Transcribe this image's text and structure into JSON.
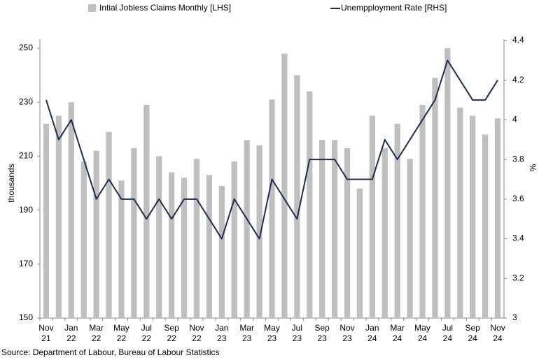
{
  "chart_data": {
    "type": "combo",
    "source": "Source: Department of Labour, Bureau of Labour Statistics",
    "y_label": "thousands",
    "y2_label": "%",
    "categories": [
      "Nov 21",
      null,
      "Jan 22",
      null,
      "Mar 22",
      null,
      "May 22",
      null,
      "Jul 22",
      null,
      "Sep 22",
      null,
      "Nov 22",
      null,
      "Jan 23",
      null,
      "Mar 23",
      null,
      "May 23",
      null,
      "Jul 23",
      null,
      "Sep 23",
      null,
      "Nov 23",
      null,
      "Jan 24",
      null,
      "Mar 24",
      null,
      "May 24",
      null,
      "Jul 24",
      null,
      "Sep 24",
      null,
      "Nov 24"
    ],
    "series": [
      {
        "name": "Intial Jobless Claims Monthly [LHS]",
        "type": "bar",
        "color": "#bfbfbf",
        "values": [
          222,
          225,
          230,
          208,
          212,
          219,
          201,
          213,
          229,
          210,
          204,
          202,
          209,
          203,
          199,
          208,
          216,
          214,
          231,
          248,
          240,
          234,
          216,
          216,
          213,
          198,
          225,
          213,
          222,
          209,
          229,
          239,
          250,
          228,
          225,
          218,
          224
        ]
      },
      {
        "name": "Unempployment Rate [RHS]",
        "type": "line",
        "axis": "y2",
        "color": "#1f2d4e",
        "values": [
          4.1,
          3.9,
          4.0,
          3.8,
          3.6,
          3.7,
          3.6,
          3.6,
          3.5,
          3.6,
          3.5,
          3.6,
          3.6,
          3.5,
          3.4,
          3.6,
          3.5,
          3.4,
          3.7,
          3.6,
          3.5,
          3.8,
          3.8,
          3.8,
          3.7,
          3.7,
          3.7,
          3.9,
          3.8,
          3.9,
          4.0,
          4.1,
          4.3,
          4.2,
          4.1,
          4.1,
          4.2
        ]
      }
    ],
    "ylim": [
      150,
      250
    ],
    "yticks": [
      150,
      170,
      190,
      210,
      230,
      250
    ],
    "y2lim": [
      3,
      4.4
    ],
    "y2ticks": [
      3,
      3.2,
      3.4,
      3.6,
      3.8,
      4,
      4.2,
      4.4
    ],
    "grid": false
  }
}
